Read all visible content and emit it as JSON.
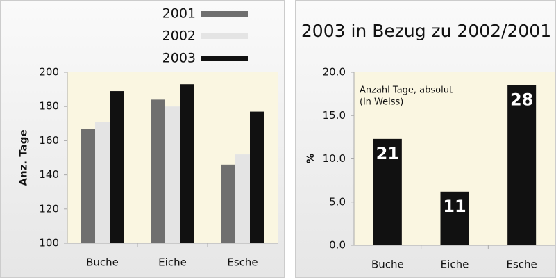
{
  "chart_data": [
    {
      "type": "bar",
      "ylabel": "Anz. Tage",
      "categories": [
        "Buche",
        "Eiche",
        "Esche"
      ],
      "series": [
        {
          "name": "2001",
          "color": "#6f6f6f",
          "values": [
            167,
            184,
            146
          ]
        },
        {
          "name": "2002",
          "color": "#e4e4e4",
          "values": [
            171,
            180,
            152
          ]
        },
        {
          "name": "2003",
          "color": "#111111",
          "values": [
            189,
            193,
            177
          ]
        }
      ],
      "ylim": [
        100,
        200
      ],
      "yticks": [
        100,
        120,
        140,
        160,
        180,
        200
      ],
      "legend": "top-right"
    },
    {
      "type": "bar",
      "title": "2003 in Bezug zu 2002/2001",
      "ylabel": "%",
      "annotation": [
        "Anzahl Tage, absolut",
        "(in Weiss)"
      ],
      "categories": [
        "Buche",
        "Eiche",
        "Esche"
      ],
      "values": [
        12.3,
        6.2,
        18.5
      ],
      "color": "#111111",
      "day_counts": [
        "21",
        "11",
        "28"
      ],
      "ylim": [
        0,
        20
      ],
      "yticks": [
        {
          "value": 0,
          "label": "0.0"
        },
        {
          "value": 5,
          "label": "5.0"
        },
        {
          "value": 10,
          "label": "10.0"
        },
        {
          "value": 15,
          "label": "15.0"
        },
        {
          "value": 20,
          "label": "20.0"
        }
      ]
    }
  ]
}
